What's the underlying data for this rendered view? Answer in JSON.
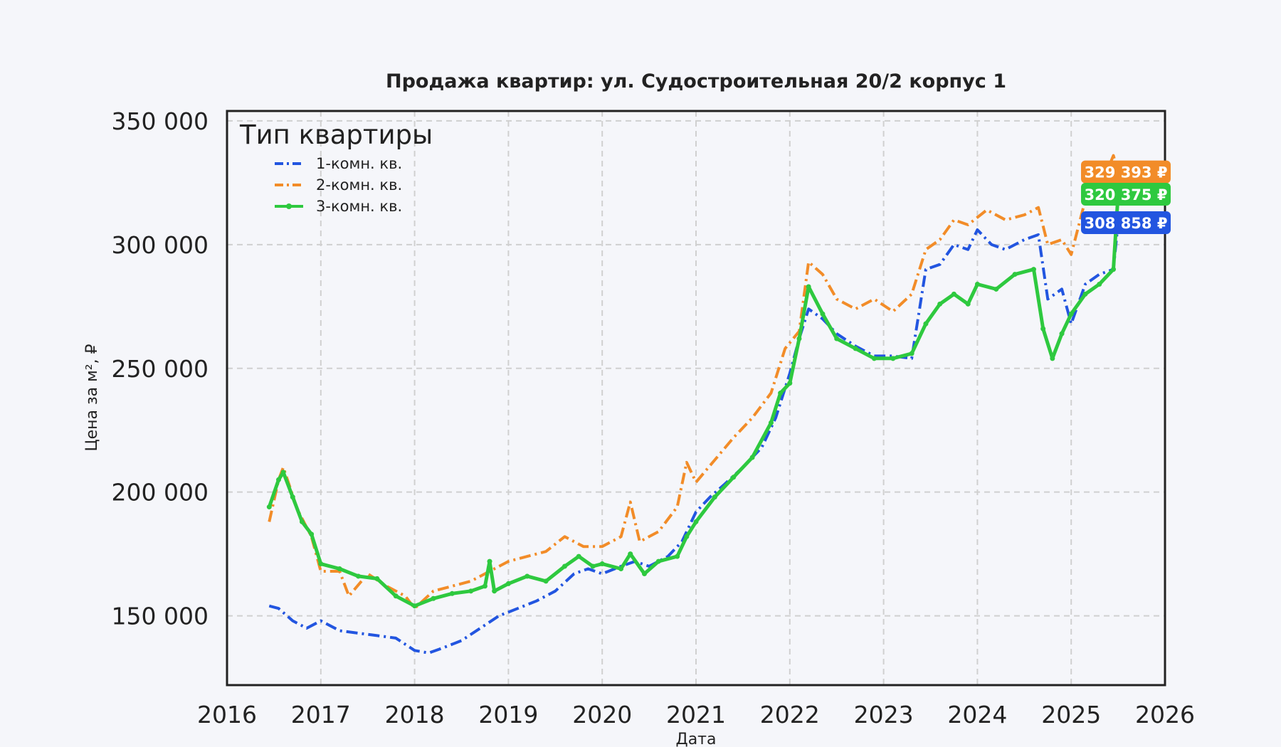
{
  "chart_data": {
    "type": "line",
    "title": "Продажа квартир: ул. Судостроительная 20/2 корпус 1",
    "xlabel": "Дата",
    "ylabel": "Цена за м², ₽",
    "xlim": [
      2016,
      2026
    ],
    "ylim": [
      122000,
      354000
    ],
    "x_ticks": [
      "2016",
      "2017",
      "2018",
      "2019",
      "2020",
      "2021",
      "2022",
      "2023",
      "2024",
      "2025",
      "2026"
    ],
    "y_ticks": [
      {
        "value": 150000,
        "label": "150 000"
      },
      {
        "value": 200000,
        "label": "200 000"
      },
      {
        "value": 250000,
        "label": "250 000"
      },
      {
        "value": 300000,
        "label": "300 000"
      },
      {
        "value": 350000,
        "label": "350 000"
      }
    ],
    "grid": true,
    "legend": {
      "title": "Тип квартиры",
      "position": "top-left"
    },
    "series": [
      {
        "name": "1-комн. кв.",
        "color": "#2255e0",
        "style": "dash-dot",
        "end_label": "308 858 ₽",
        "points": [
          [
            2016.45,
            154000
          ],
          [
            2016.55,
            153000
          ],
          [
            2016.7,
            148000
          ],
          [
            2016.85,
            145000
          ],
          [
            2017.0,
            148000
          ],
          [
            2017.2,
            144000
          ],
          [
            2017.4,
            143000
          ],
          [
            2017.6,
            142000
          ],
          [
            2017.8,
            141000
          ],
          [
            2018.0,
            136000
          ],
          [
            2018.15,
            135000
          ],
          [
            2018.3,
            137000
          ],
          [
            2018.5,
            140000
          ],
          [
            2018.7,
            145000
          ],
          [
            2018.9,
            150000
          ],
          [
            2019.1,
            153000
          ],
          [
            2019.3,
            156000
          ],
          [
            2019.5,
            160000
          ],
          [
            2019.7,
            167000
          ],
          [
            2019.85,
            169000
          ],
          [
            2020.0,
            167000
          ],
          [
            2020.2,
            170000
          ],
          [
            2020.35,
            172000
          ],
          [
            2020.5,
            170000
          ],
          [
            2020.7,
            174000
          ],
          [
            2020.85,
            180000
          ],
          [
            2021.0,
            192000
          ],
          [
            2021.15,
            198000
          ],
          [
            2021.3,
            203000
          ],
          [
            2021.5,
            210000
          ],
          [
            2021.7,
            218000
          ],
          [
            2021.85,
            230000
          ],
          [
            2022.0,
            248000
          ],
          [
            2022.1,
            262000
          ],
          [
            2022.2,
            274000
          ],
          [
            2022.35,
            270000
          ],
          [
            2022.5,
            264000
          ],
          [
            2022.7,
            259000
          ],
          [
            2022.9,
            255000
          ],
          [
            2023.1,
            255000
          ],
          [
            2023.3,
            254000
          ],
          [
            2023.45,
            290000
          ],
          [
            2023.6,
            292000
          ],
          [
            2023.75,
            300000
          ],
          [
            2023.9,
            298000
          ],
          [
            2024.0,
            306000
          ],
          [
            2024.15,
            300000
          ],
          [
            2024.3,
            298000
          ],
          [
            2024.5,
            302000
          ],
          [
            2024.65,
            304000
          ],
          [
            2024.75,
            278000
          ],
          [
            2024.9,
            282000
          ],
          [
            2025.0,
            268000
          ],
          [
            2025.15,
            284000
          ],
          [
            2025.3,
            288000
          ],
          [
            2025.45,
            290000
          ],
          [
            2025.5,
            308858
          ]
        ]
      },
      {
        "name": "2-комн. кв.",
        "color": "#f28c28",
        "style": "dash-dot",
        "end_label": "329 393 ₽",
        "points": [
          [
            2016.45,
            188000
          ],
          [
            2016.55,
            205000
          ],
          [
            2016.6,
            210000
          ],
          [
            2016.75,
            193000
          ],
          [
            2016.9,
            182000
          ],
          [
            2017.0,
            168000
          ],
          [
            2017.2,
            168000
          ],
          [
            2017.3,
            158000
          ],
          [
            2017.5,
            167000
          ],
          [
            2017.7,
            162000
          ],
          [
            2017.9,
            158000
          ],
          [
            2018.0,
            153000
          ],
          [
            2018.2,
            160000
          ],
          [
            2018.4,
            162000
          ],
          [
            2018.6,
            164000
          ],
          [
            2018.8,
            168000
          ],
          [
            2019.0,
            172000
          ],
          [
            2019.2,
            174000
          ],
          [
            2019.4,
            176000
          ],
          [
            2019.6,
            182000
          ],
          [
            2019.8,
            178000
          ],
          [
            2020.0,
            178000
          ],
          [
            2020.2,
            182000
          ],
          [
            2020.3,
            196000
          ],
          [
            2020.4,
            180000
          ],
          [
            2020.6,
            184000
          ],
          [
            2020.8,
            194000
          ],
          [
            2020.9,
            212000
          ],
          [
            2021.0,
            204000
          ],
          [
            2021.2,
            213000
          ],
          [
            2021.4,
            222000
          ],
          [
            2021.6,
            230000
          ],
          [
            2021.8,
            240000
          ],
          [
            2021.95,
            258000
          ],
          [
            2022.1,
            265000
          ],
          [
            2022.2,
            293000
          ],
          [
            2022.35,
            288000
          ],
          [
            2022.5,
            278000
          ],
          [
            2022.7,
            274000
          ],
          [
            2022.9,
            278000
          ],
          [
            2023.1,
            273000
          ],
          [
            2023.3,
            280000
          ],
          [
            2023.45,
            298000
          ],
          [
            2023.6,
            302000
          ],
          [
            2023.75,
            310000
          ],
          [
            2023.9,
            308000
          ],
          [
            2024.1,
            314000
          ],
          [
            2024.3,
            310000
          ],
          [
            2024.5,
            312000
          ],
          [
            2024.65,
            315000
          ],
          [
            2024.75,
            300000
          ],
          [
            2024.9,
            302000
          ],
          [
            2025.0,
            296000
          ],
          [
            2025.15,
            318000
          ],
          [
            2025.3,
            322000
          ],
          [
            2025.45,
            336000
          ],
          [
            2025.5,
            329393
          ]
        ]
      },
      {
        "name": "3-комн. кв.",
        "color": "#2ec93f",
        "style": "solid-marker",
        "end_label": "320 375 ₽",
        "points": [
          [
            2016.45,
            194000
          ],
          [
            2016.55,
            205000
          ],
          [
            2016.6,
            208000
          ],
          [
            2016.7,
            198000
          ],
          [
            2016.8,
            188000
          ],
          [
            2016.9,
            183000
          ],
          [
            2017.0,
            171000
          ],
          [
            2017.2,
            169000
          ],
          [
            2017.4,
            166000
          ],
          [
            2017.6,
            165000
          ],
          [
            2017.8,
            158000
          ],
          [
            2018.0,
            154000
          ],
          [
            2018.2,
            157000
          ],
          [
            2018.4,
            159000
          ],
          [
            2018.6,
            160000
          ],
          [
            2018.75,
            162000
          ],
          [
            2018.8,
            172000
          ],
          [
            2018.85,
            160000
          ],
          [
            2019.0,
            163000
          ],
          [
            2019.2,
            166000
          ],
          [
            2019.4,
            164000
          ],
          [
            2019.6,
            170000
          ],
          [
            2019.75,
            174000
          ],
          [
            2019.9,
            170000
          ],
          [
            2020.0,
            171000
          ],
          [
            2020.2,
            169000
          ],
          [
            2020.3,
            175000
          ],
          [
            2020.45,
            167000
          ],
          [
            2020.6,
            172000
          ],
          [
            2020.8,
            174000
          ],
          [
            2020.9,
            182000
          ],
          [
            2021.0,
            188000
          ],
          [
            2021.2,
            198000
          ],
          [
            2021.4,
            206000
          ],
          [
            2021.6,
            214000
          ],
          [
            2021.8,
            228000
          ],
          [
            2021.9,
            240000
          ],
          [
            2022.0,
            244000
          ],
          [
            2022.1,
            262000
          ],
          [
            2022.2,
            283000
          ],
          [
            2022.35,
            272000
          ],
          [
            2022.5,
            262000
          ],
          [
            2022.7,
            258000
          ],
          [
            2022.9,
            254000
          ],
          [
            2023.1,
            254000
          ],
          [
            2023.3,
            256000
          ],
          [
            2023.45,
            268000
          ],
          [
            2023.6,
            276000
          ],
          [
            2023.75,
            280000
          ],
          [
            2023.9,
            276000
          ],
          [
            2024.0,
            284000
          ],
          [
            2024.2,
            282000
          ],
          [
            2024.4,
            288000
          ],
          [
            2024.6,
            290000
          ],
          [
            2024.7,
            266000
          ],
          [
            2024.8,
            254000
          ],
          [
            2024.9,
            264000
          ],
          [
            2025.0,
            272000
          ],
          [
            2025.15,
            280000
          ],
          [
            2025.3,
            284000
          ],
          [
            2025.45,
            290000
          ],
          [
            2025.5,
            320375
          ]
        ]
      }
    ]
  }
}
